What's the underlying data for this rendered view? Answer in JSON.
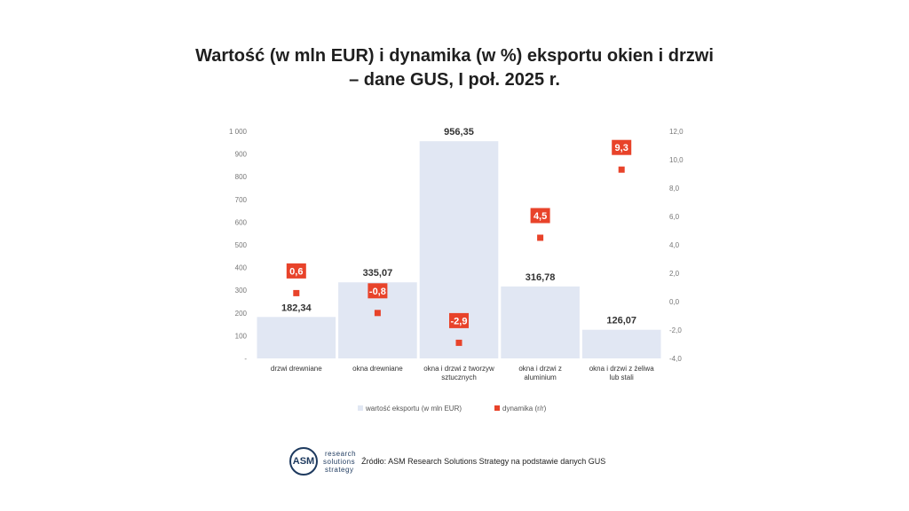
{
  "title_line1": "Wartość (w mln EUR) i dynamika (w %) eksportu okien i drzwi",
  "title_line2": "– dane GUS, I poł. 2025 r.",
  "chart_data": {
    "type": "bar",
    "categories": [
      [
        "drzwi drewniane"
      ],
      [
        "okna drewniane"
      ],
      [
        "okna i drzwi z tworzyw",
        "sztucznych"
      ],
      [
        "okna i drzwi z",
        "aluminium"
      ],
      [
        "okna i drzwi z żeliwa",
        "lub stali"
      ]
    ],
    "series": [
      {
        "name": "wartość eksportu (w mln EUR)",
        "type": "bar",
        "axis": "left",
        "values": [
          182.34,
          335.07,
          956.35,
          316.78,
          126.07
        ],
        "labels": [
          "182,34",
          "335,07",
          "956,35",
          "316,78",
          "126,07"
        ],
        "color": "#e1e7f3"
      },
      {
        "name": "dynamika (r/r)",
        "type": "scatter",
        "axis": "right",
        "values": [
          0.6,
          -0.8,
          -2.9,
          4.5,
          9.3
        ],
        "labels": [
          "0,6",
          "-0,8",
          "-2,9",
          "4,5",
          "9,3"
        ],
        "color": "#e8432a"
      }
    ],
    "y_left": {
      "ylim": [
        0,
        1000
      ],
      "ticks": [
        0,
        100,
        200,
        300,
        400,
        500,
        600,
        700,
        800,
        900,
        1000
      ],
      "tick_labels": [
        "-",
        "100",
        "200",
        "300",
        "400",
        "500",
        "600",
        "700",
        "800",
        "900",
        "1 000"
      ]
    },
    "y_right": {
      "ylim": [
        -4,
        12
      ],
      "ticks": [
        -4,
        -2,
        0,
        2,
        4,
        6,
        8,
        10,
        12
      ],
      "tick_labels": [
        "-4,0",
        "-2,0",
        "0,0",
        "2,0",
        "4,0",
        "6,0",
        "8,0",
        "10,0",
        "12,0"
      ]
    },
    "grid": false,
    "legend": "bottom"
  },
  "footer": {
    "logo_abbr": "ASM",
    "logo_lines": [
      "research",
      "solutions",
      "strategy"
    ],
    "source": "Źródło: ASM Research Solutions Strategy na podstawie danych GUS"
  }
}
